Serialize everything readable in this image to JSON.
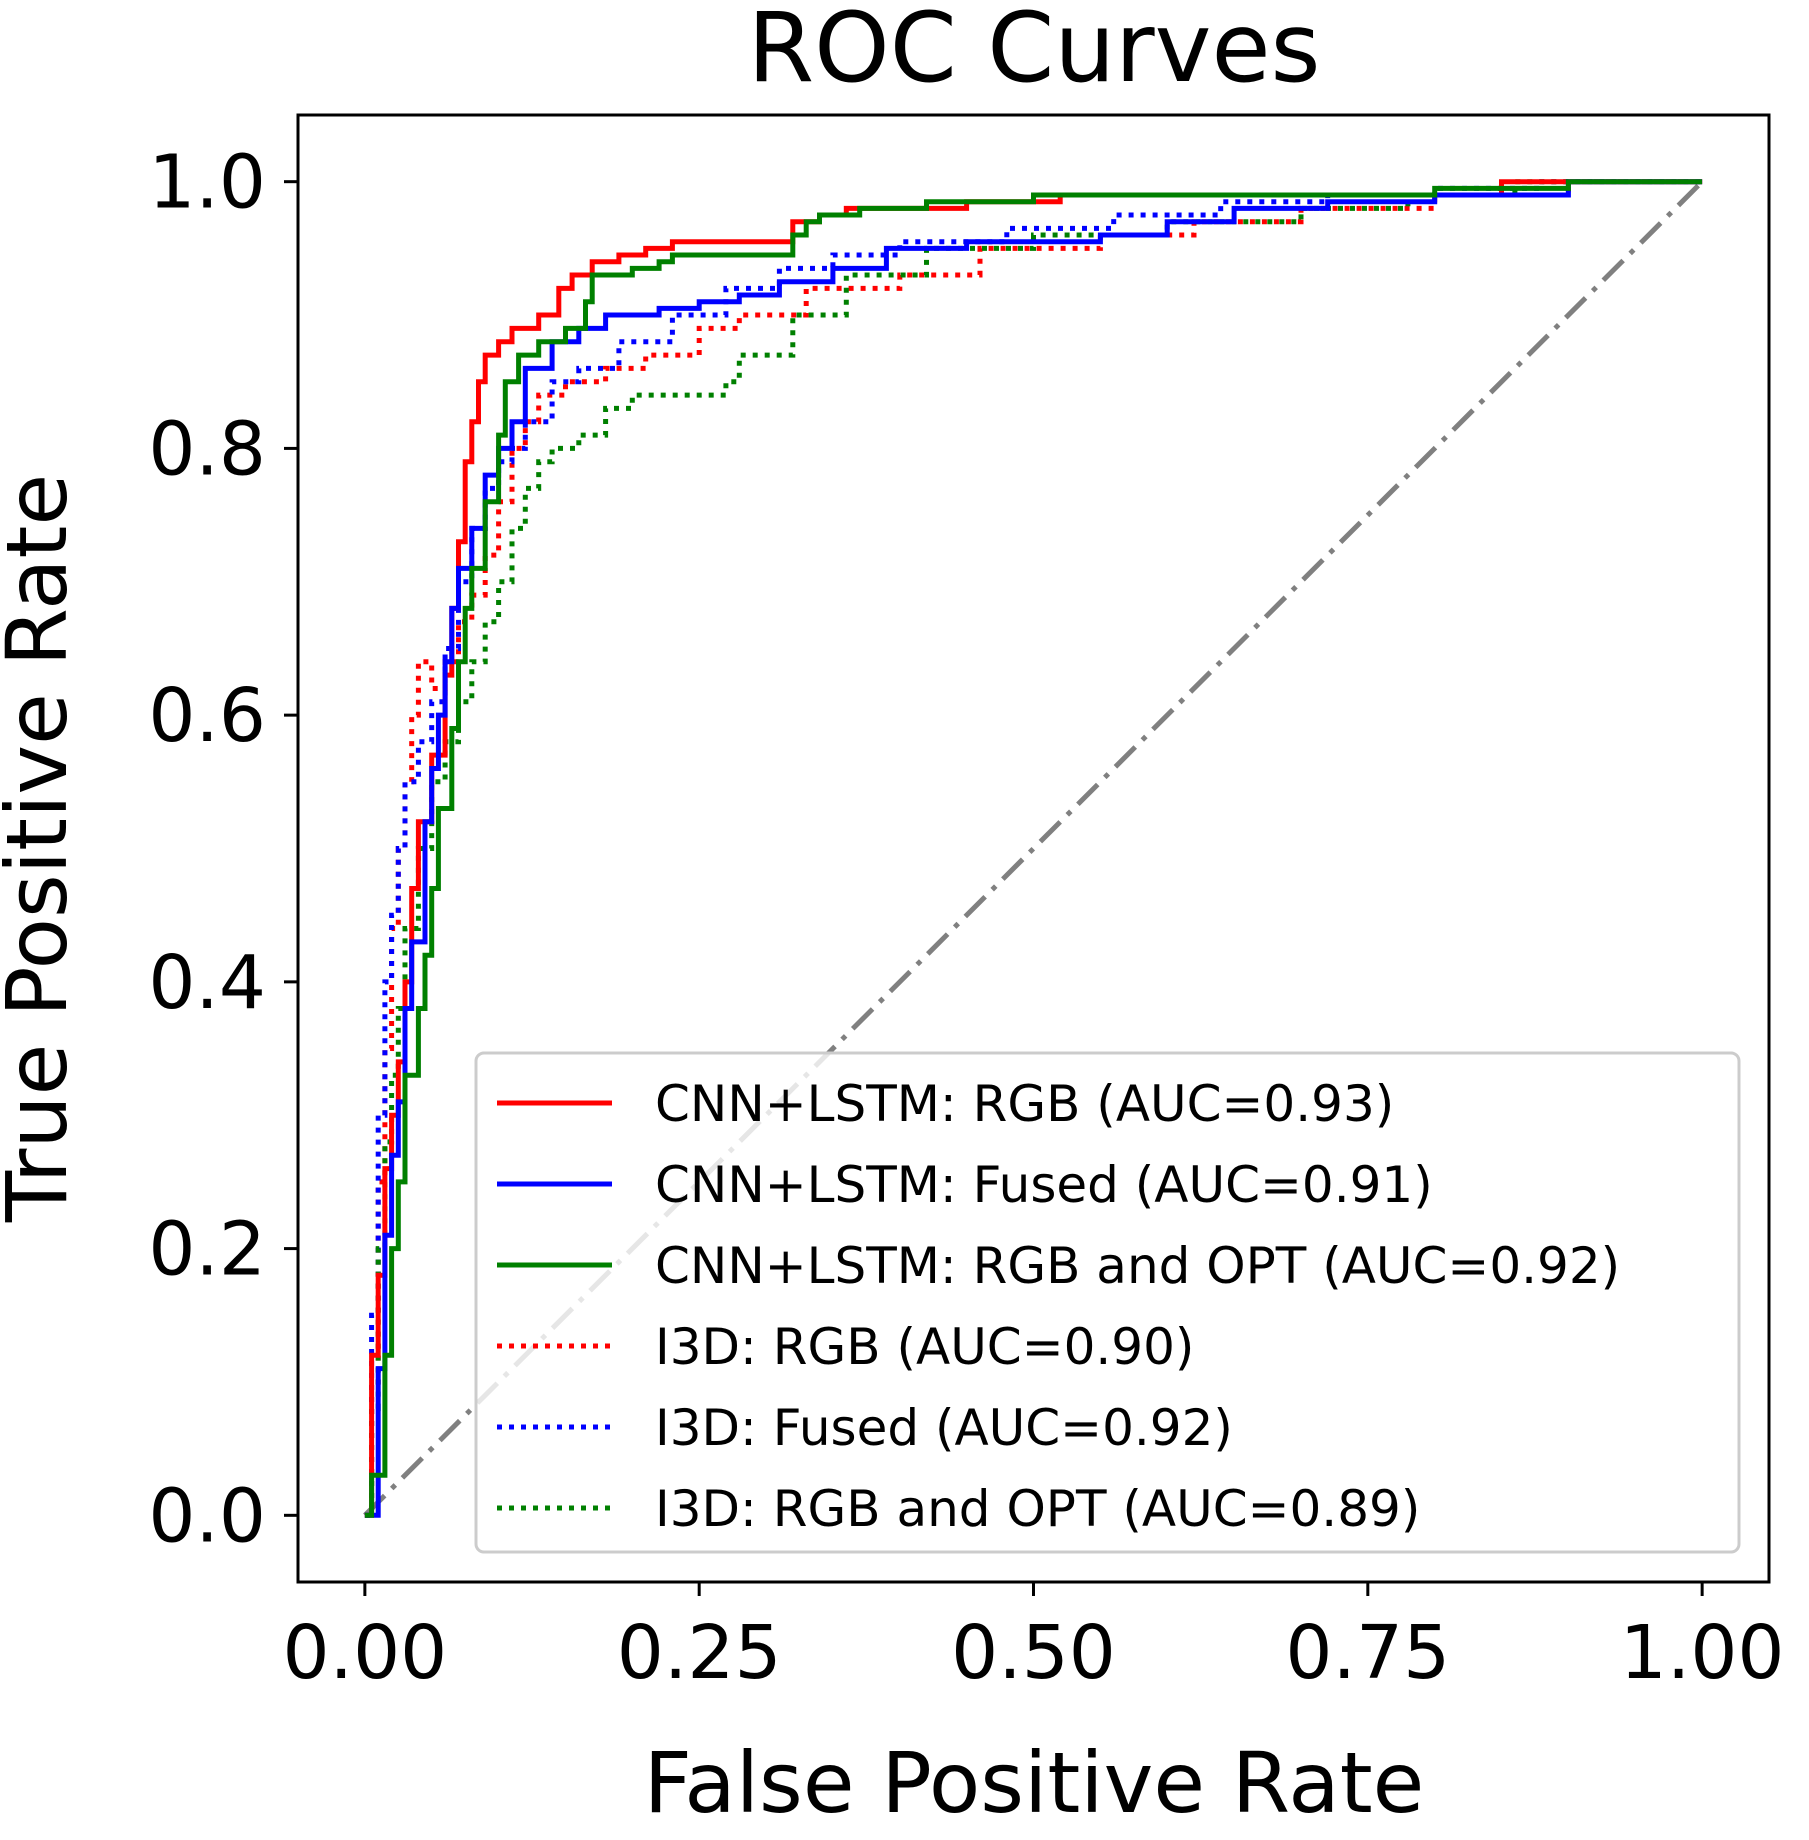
{
  "chart_data": {
    "type": "line",
    "title": "ROC Curves",
    "xlabel": "False Positive Rate",
    "ylabel": "True Positive Rate",
    "xlim": [
      -0.05,
      1.05
    ],
    "ylim": [
      -0.05,
      1.05
    ],
    "xticks": [
      0.0,
      0.25,
      0.5,
      0.75,
      1.0
    ],
    "xtick_labels": [
      "0.00",
      "0.25",
      "0.50",
      "0.75",
      "1.00"
    ],
    "yticks": [
      0.0,
      0.2,
      0.4,
      0.6,
      0.8,
      1.0
    ],
    "ytick_labels": [
      "0.0",
      "0.2",
      "0.4",
      "0.6",
      "0.8",
      "1.0"
    ],
    "grid": false,
    "legend_position": "lower-right",
    "series": [
      {
        "name": "CNN+LSTM: RGB (AUC=0.93)",
        "color": "#ff0000",
        "style": "solid",
        "x": [
          0.0,
          0.005,
          0.005,
          0.01,
          0.01,
          0.015,
          0.015,
          0.02,
          0.02,
          0.025,
          0.025,
          0.03,
          0.03,
          0.035,
          0.035,
          0.04,
          0.04,
          0.05,
          0.05,
          0.06,
          0.06,
          0.065,
          0.065,
          0.07,
          0.07,
          0.075,
          0.075,
          0.08,
          0.08,
          0.085,
          0.085,
          0.09,
          0.09,
          0.1,
          0.1,
          0.11,
          0.11,
          0.12,
          0.12,
          0.13,
          0.13,
          0.145,
          0.145,
          0.155,
          0.155,
          0.16,
          0.16,
          0.17,
          0.17,
          0.19,
          0.19,
          0.21,
          0.21,
          0.23,
          0.23,
          0.26,
          0.26,
          0.32,
          0.32,
          0.34,
          0.34,
          0.36,
          0.36,
          0.45,
          0.45,
          0.52,
          0.52,
          0.6,
          0.6,
          0.85,
          0.85,
          1.0
        ],
        "y": [
          0.0,
          0.0,
          0.12,
          0.12,
          0.18,
          0.18,
          0.26,
          0.26,
          0.3,
          0.3,
          0.34,
          0.34,
          0.4,
          0.4,
          0.47,
          0.47,
          0.52,
          0.52,
          0.57,
          0.57,
          0.63,
          0.63,
          0.68,
          0.68,
          0.73,
          0.73,
          0.79,
          0.79,
          0.82,
          0.82,
          0.85,
          0.85,
          0.87,
          0.87,
          0.88,
          0.88,
          0.89,
          0.89,
          0.89,
          0.89,
          0.9,
          0.9,
          0.92,
          0.92,
          0.93,
          0.93,
          0.93,
          0.93,
          0.94,
          0.94,
          0.945,
          0.945,
          0.95,
          0.95,
          0.955,
          0.955,
          0.955,
          0.955,
          0.97,
          0.97,
          0.975,
          0.975,
          0.98,
          0.98,
          0.985,
          0.985,
          0.99,
          0.99,
          0.99,
          0.99,
          1.0,
          1.0
        ]
      },
      {
        "name": "CNN+LSTM: Fused (AUC=0.91)",
        "color": "#0000ff",
        "style": "solid",
        "x": [
          0.0,
          0.01,
          0.01,
          0.015,
          0.015,
          0.02,
          0.02,
          0.025,
          0.025,
          0.03,
          0.03,
          0.035,
          0.035,
          0.045,
          0.045,
          0.05,
          0.05,
          0.055,
          0.055,
          0.06,
          0.06,
          0.065,
          0.065,
          0.07,
          0.07,
          0.08,
          0.08,
          0.09,
          0.09,
          0.1,
          0.1,
          0.11,
          0.11,
          0.12,
          0.12,
          0.14,
          0.14,
          0.16,
          0.16,
          0.18,
          0.18,
          0.22,
          0.22,
          0.25,
          0.25,
          0.28,
          0.28,
          0.31,
          0.31,
          0.35,
          0.35,
          0.39,
          0.39,
          0.45,
          0.45,
          0.55,
          0.55,
          0.6,
          0.6,
          0.65,
          0.65,
          0.72,
          0.72,
          0.8,
          0.8,
          0.9,
          0.9,
          1.0
        ],
        "y": [
          0.0,
          0.0,
          0.11,
          0.11,
          0.21,
          0.21,
          0.27,
          0.27,
          0.31,
          0.31,
          0.38,
          0.38,
          0.43,
          0.43,
          0.52,
          0.52,
          0.56,
          0.56,
          0.6,
          0.6,
          0.64,
          0.64,
          0.68,
          0.68,
          0.71,
          0.71,
          0.74,
          0.74,
          0.78,
          0.78,
          0.8,
          0.8,
          0.82,
          0.82,
          0.86,
          0.86,
          0.88,
          0.88,
          0.89,
          0.89,
          0.9,
          0.9,
          0.905,
          0.905,
          0.91,
          0.91,
          0.915,
          0.915,
          0.925,
          0.925,
          0.935,
          0.935,
          0.95,
          0.95,
          0.955,
          0.955,
          0.96,
          0.96,
          0.97,
          0.97,
          0.98,
          0.98,
          0.985,
          0.985,
          0.99,
          0.99,
          1.0,
          1.0
        ]
      },
      {
        "name": "CNN+LSTM: RGB and OPT (AUC=0.92)",
        "color": "#008000",
        "style": "solid",
        "x": [
          0.0,
          0.005,
          0.005,
          0.015,
          0.015,
          0.02,
          0.02,
          0.025,
          0.025,
          0.03,
          0.03,
          0.04,
          0.04,
          0.045,
          0.045,
          0.05,
          0.05,
          0.055,
          0.055,
          0.065,
          0.065,
          0.07,
          0.07,
          0.075,
          0.075,
          0.08,
          0.08,
          0.09,
          0.09,
          0.1,
          0.1,
          0.105,
          0.105,
          0.115,
          0.115,
          0.13,
          0.13,
          0.15,
          0.15,
          0.165,
          0.165,
          0.17,
          0.17,
          0.2,
          0.2,
          0.22,
          0.22,
          0.23,
          0.23,
          0.32,
          0.32,
          0.33,
          0.33,
          0.34,
          0.34,
          0.37,
          0.37,
          0.42,
          0.42,
          0.5,
          0.5,
          0.6,
          0.6,
          0.7,
          0.7,
          0.8,
          0.8,
          0.9,
          0.9,
          1.0
        ],
        "y": [
          0.0,
          0.0,
          0.03,
          0.03,
          0.12,
          0.12,
          0.2,
          0.2,
          0.25,
          0.25,
          0.33,
          0.33,
          0.38,
          0.38,
          0.42,
          0.42,
          0.47,
          0.47,
          0.53,
          0.53,
          0.59,
          0.59,
          0.64,
          0.64,
          0.68,
          0.68,
          0.71,
          0.71,
          0.76,
          0.76,
          0.81,
          0.81,
          0.85,
          0.85,
          0.87,
          0.87,
          0.88,
          0.88,
          0.89,
          0.89,
          0.91,
          0.91,
          0.93,
          0.93,
          0.935,
          0.935,
          0.94,
          0.94,
          0.945,
          0.945,
          0.96,
          0.96,
          0.97,
          0.97,
          0.975,
          0.975,
          0.98,
          0.98,
          0.985,
          0.985,
          0.99,
          0.99,
          0.99,
          0.99,
          0.99,
          0.99,
          0.995,
          0.995,
          1.0,
          1.0
        ]
      },
      {
        "name": "I3D: RGB (AUC=0.90)",
        "color": "#ff0000",
        "style": "dotted",
        "x": [
          0.0,
          0.005,
          0.005,
          0.01,
          0.01,
          0.015,
          0.015,
          0.02,
          0.02,
          0.025,
          0.025,
          0.03,
          0.03,
          0.035,
          0.035,
          0.04,
          0.04,
          0.045,
          0.045,
          0.05,
          0.05,
          0.06,
          0.06,
          0.07,
          0.07,
          0.08,
          0.08,
          0.09,
          0.09,
          0.1,
          0.1,
          0.11,
          0.11,
          0.12,
          0.12,
          0.13,
          0.13,
          0.15,
          0.15,
          0.18,
          0.18,
          0.21,
          0.21,
          0.25,
          0.25,
          0.28,
          0.28,
          0.33,
          0.33,
          0.4,
          0.4,
          0.46,
          0.46,
          0.55,
          0.55,
          0.62,
          0.62,
          0.7,
          0.7,
          0.8,
          0.8,
          0.9,
          0.9,
          1.0
        ],
        "y": [
          0.0,
          0.0,
          0.1,
          0.1,
          0.25,
          0.25,
          0.35,
          0.35,
          0.44,
          0.44,
          0.5,
          0.5,
          0.55,
          0.55,
          0.6,
          0.6,
          0.64,
          0.64,
          0.64,
          0.64,
          0.62,
          0.62,
          0.64,
          0.64,
          0.67,
          0.67,
          0.69,
          0.69,
          0.72,
          0.72,
          0.76,
          0.76,
          0.8,
          0.8,
          0.82,
          0.82,
          0.84,
          0.84,
          0.85,
          0.85,
          0.86,
          0.86,
          0.87,
          0.87,
          0.89,
          0.89,
          0.9,
          0.9,
          0.92,
          0.92,
          0.93,
          0.93,
          0.95,
          0.95,
          0.96,
          0.96,
          0.97,
          0.97,
          0.98,
          0.98,
          0.99,
          0.99,
          1.0,
          1.0
        ]
      },
      {
        "name": "I3D: Fused (AUC=0.92)",
        "color": "#0000ff",
        "style": "dotted",
        "x": [
          0.0,
          0.005,
          0.005,
          0.01,
          0.01,
          0.015,
          0.015,
          0.02,
          0.02,
          0.025,
          0.025,
          0.03,
          0.03,
          0.04,
          0.04,
          0.05,
          0.05,
          0.06,
          0.06,
          0.07,
          0.07,
          0.08,
          0.08,
          0.09,
          0.09,
          0.1,
          0.1,
          0.11,
          0.11,
          0.12,
          0.12,
          0.14,
          0.14,
          0.16,
          0.16,
          0.19,
          0.19,
          0.23,
          0.23,
          0.27,
          0.27,
          0.31,
          0.31,
          0.35,
          0.35,
          0.4,
          0.4,
          0.48,
          0.48,
          0.56,
          0.56,
          0.64,
          0.64,
          0.72,
          0.72,
          0.8,
          0.8,
          0.88,
          0.88,
          1.0
        ],
        "y": [
          0.0,
          0.0,
          0.15,
          0.15,
          0.3,
          0.3,
          0.4,
          0.4,
          0.45,
          0.45,
          0.5,
          0.5,
          0.55,
          0.55,
          0.58,
          0.58,
          0.61,
          0.61,
          0.65,
          0.65,
          0.7,
          0.7,
          0.74,
          0.74,
          0.77,
          0.77,
          0.79,
          0.79,
          0.8,
          0.8,
          0.82,
          0.82,
          0.85,
          0.85,
          0.86,
          0.86,
          0.88,
          0.88,
          0.9,
          0.9,
          0.92,
          0.92,
          0.935,
          0.935,
          0.945,
          0.945,
          0.955,
          0.955,
          0.965,
          0.965,
          0.975,
          0.975,
          0.985,
          0.985,
          0.99,
          0.99,
          0.995,
          0.995,
          1.0,
          1.0
        ]
      },
      {
        "name": "I3D: RGB and OPT (AUC=0.89)",
        "color": "#008000",
        "style": "dotted",
        "x": [
          0.0,
          0.005,
          0.005,
          0.01,
          0.01,
          0.015,
          0.015,
          0.02,
          0.02,
          0.025,
          0.025,
          0.03,
          0.03,
          0.04,
          0.04,
          0.05,
          0.05,
          0.06,
          0.06,
          0.07,
          0.07,
          0.08,
          0.08,
          0.09,
          0.09,
          0.1,
          0.1,
          0.11,
          0.11,
          0.12,
          0.12,
          0.13,
          0.13,
          0.14,
          0.14,
          0.16,
          0.16,
          0.18,
          0.18,
          0.2,
          0.2,
          0.27,
          0.27,
          0.28,
          0.28,
          0.32,
          0.32,
          0.36,
          0.36,
          0.42,
          0.42,
          0.5,
          0.5,
          0.6,
          0.6,
          0.7,
          0.7,
          0.78,
          0.78,
          0.86,
          0.86,
          1.0
        ],
        "y": [
          0.0,
          0.0,
          0.08,
          0.08,
          0.2,
          0.2,
          0.28,
          0.28,
          0.33,
          0.33,
          0.38,
          0.38,
          0.44,
          0.44,
          0.5,
          0.5,
          0.55,
          0.55,
          0.58,
          0.58,
          0.61,
          0.61,
          0.64,
          0.64,
          0.67,
          0.67,
          0.7,
          0.7,
          0.74,
          0.74,
          0.77,
          0.77,
          0.79,
          0.79,
          0.8,
          0.8,
          0.81,
          0.81,
          0.83,
          0.83,
          0.84,
          0.84,
          0.85,
          0.85,
          0.87,
          0.87,
          0.9,
          0.9,
          0.93,
          0.93,
          0.95,
          0.95,
          0.96,
          0.96,
          0.97,
          0.97,
          0.98,
          0.98,
          0.99,
          0.99,
          1.0,
          1.0
        ]
      }
    ],
    "reference_line": {
      "x": [
        0.0,
        1.0
      ],
      "y": [
        0.0,
        1.0
      ],
      "color": "#808080",
      "style": "dash-dot"
    }
  }
}
